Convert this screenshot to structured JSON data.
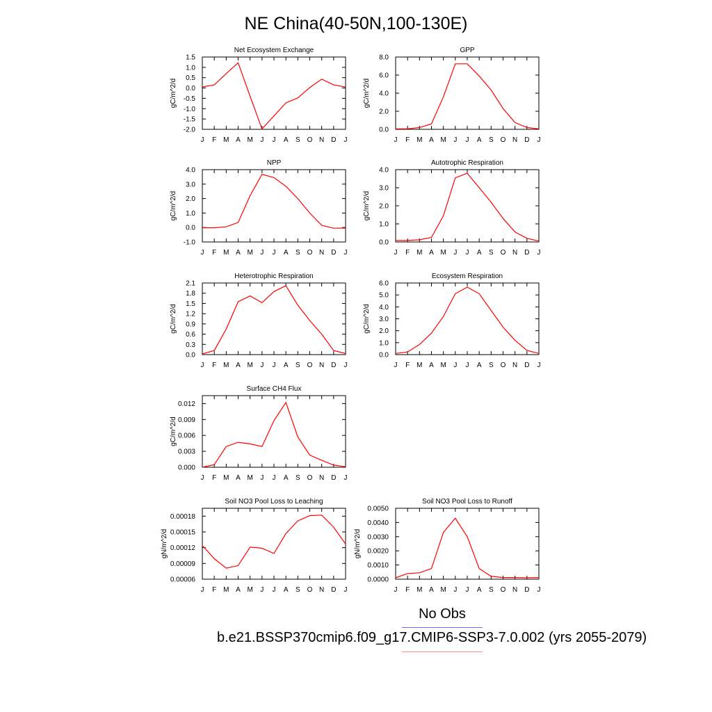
{
  "page": {
    "title": "NE China(40-50N,100-130E)",
    "legend_label": "No Obs",
    "caption": "b.e21.BSSP370cmip6.f09_g17.CMIP6-SSP3-7.0.002 (yrs 2055-2079)",
    "colors": {
      "line": "#ff0000",
      "legend_blue": "#6b6bff",
      "legend_red": "#ff8a8a",
      "axis": "#000000"
    }
  },
  "chart_data": [
    {
      "type": "line",
      "title": "Net Ecosystem Exchange",
      "ylabel": "gC/m^2/d",
      "x": [
        "J",
        "F",
        "M",
        "A",
        "M",
        "J",
        "J",
        "A",
        "S",
        "O",
        "N",
        "D",
        "J"
      ],
      "values": [
        0.05,
        0.15,
        0.7,
        1.22,
        -0.4,
        -1.98,
        -1.35,
        -0.72,
        -0.48,
        0.02,
        0.43,
        0.15,
        0.05
      ],
      "ylim": [
        -2.0,
        1.5
      ],
      "yticks": [
        "-2.0",
        "-1.5",
        "-1.0",
        "-0.5",
        "0.0",
        "0.5",
        "1.0",
        "1.5"
      ],
      "grid": false
    },
    {
      "type": "line",
      "title": "GPP",
      "ylabel": "gC/m^2/d",
      "x": [
        "J",
        "F",
        "M",
        "A",
        "M",
        "J",
        "J",
        "A",
        "S",
        "O",
        "N",
        "D",
        "J"
      ],
      "values": [
        0.05,
        0.05,
        0.2,
        0.6,
        3.6,
        7.25,
        7.25,
        5.9,
        4.35,
        2.3,
        0.75,
        0.2,
        0.05
      ],
      "ylim": [
        0.0,
        8.0
      ],
      "yticks": [
        "0.0",
        "2.0",
        "4.0",
        "6.0",
        "8.0"
      ],
      "grid": false
    },
    {
      "type": "line",
      "title": "NPP",
      "ylabel": "gC/m^2/d",
      "x": [
        "J",
        "F",
        "M",
        "A",
        "M",
        "J",
        "J",
        "A",
        "S",
        "O",
        "N",
        "D",
        "J"
      ],
      "values": [
        -0.02,
        -0.02,
        0.05,
        0.35,
        2.2,
        3.68,
        3.45,
        2.85,
        2.0,
        1.0,
        0.15,
        -0.05,
        -0.04
      ],
      "ylim": [
        -1.0,
        4.0
      ],
      "yticks": [
        "-1.0",
        "0.0",
        "1.0",
        "2.0",
        "3.0",
        "4.0"
      ],
      "grid": false
    },
    {
      "type": "line",
      "title": "Autotrophic Respiration",
      "ylabel": "gC/m^2/d",
      "x": [
        "J",
        "F",
        "M",
        "A",
        "M",
        "J",
        "J",
        "A",
        "S",
        "O",
        "N",
        "D",
        "J"
      ],
      "values": [
        0.08,
        0.08,
        0.12,
        0.25,
        1.45,
        3.55,
        3.8,
        3.0,
        2.2,
        1.3,
        0.55,
        0.2,
        0.05
      ],
      "ylim": [
        0.0,
        4.0
      ],
      "yticks": [
        "0.0",
        "1.0",
        "2.0",
        "3.0",
        "4.0"
      ],
      "grid": false
    },
    {
      "type": "line",
      "title": "Heterotrophic Respiration",
      "ylabel": "gC/m^2/d",
      "x": [
        "J",
        "F",
        "M",
        "A",
        "M",
        "J",
        "J",
        "A",
        "S",
        "O",
        "N",
        "D",
        "J"
      ],
      "values": [
        0.02,
        0.12,
        0.75,
        1.55,
        1.72,
        1.52,
        1.85,
        2.02,
        1.45,
        1.0,
        0.6,
        0.12,
        0.03
      ],
      "ylim": [
        0.0,
        2.1
      ],
      "yticks": [
        "0.0",
        "0.3",
        "0.6",
        "0.9",
        "1.2",
        "1.5",
        "1.8",
        "2.1"
      ],
      "grid": false
    },
    {
      "type": "line",
      "title": "Ecosystem Respiration",
      "ylabel": "gC/m^2/d",
      "x": [
        "J",
        "F",
        "M",
        "A",
        "M",
        "J",
        "J",
        "A",
        "S",
        "O",
        "N",
        "D",
        "J"
      ],
      "values": [
        0.1,
        0.22,
        0.85,
        1.8,
        3.2,
        5.1,
        5.65,
        5.1,
        3.7,
        2.3,
        1.2,
        0.35,
        0.1
      ],
      "ylim": [
        0.0,
        6.0
      ],
      "yticks": [
        "0.0",
        "1.0",
        "2.0",
        "3.0",
        "4.0",
        "5.0",
        "6.0"
      ],
      "grid": false
    },
    {
      "type": "line",
      "title": "Surface CH4 Flux",
      "ylabel": "gC/m^2/d",
      "x": [
        "J",
        "F",
        "M",
        "A",
        "M",
        "J",
        "J",
        "A",
        "S",
        "O",
        "N",
        "D",
        "J"
      ],
      "values": [
        0.0,
        0.0005,
        0.0039,
        0.0047,
        0.0044,
        0.0039,
        0.0088,
        0.0122,
        0.0057,
        0.0023,
        0.0013,
        0.0004,
        0.0001
      ],
      "ylim": [
        0.0,
        0.0135
      ],
      "yticks": [
        "0.000",
        "0.003",
        "0.006",
        "0.009",
        "0.012"
      ],
      "ytickvals": [
        0.0,
        0.003,
        0.006,
        0.009,
        0.012
      ],
      "grid": false
    },
    {
      "type": "line",
      "title": "Soil NO3 Pool Loss to Leaching",
      "ylabel": "gN/m^2/d",
      "x": [
        "J",
        "F",
        "M",
        "A",
        "M",
        "J",
        "J",
        "A",
        "S",
        "O",
        "N",
        "D",
        "J"
      ],
      "values": [
        0.000124,
        9.9e-05,
        8.1e-05,
        8.6e-05,
        0.000121,
        0.000119,
        0.000109,
        0.000147,
        0.000171,
        0.000181,
        0.000182,
        0.000159,
        0.000127
      ],
      "ylim": [
        6e-05,
        0.000195
      ],
      "yticks": [
        "0.00006",
        "0.00009",
        "0.00012",
        "0.00015",
        "0.00018"
      ],
      "ytickvals": [
        6e-05,
        9e-05,
        0.00012,
        0.00015,
        0.00018
      ],
      "grid": false
    },
    {
      "type": "line",
      "title": "Soil NO3 Pool Loss to Runoff",
      "ylabel": "gN/m^2/d",
      "x": [
        "J",
        "F",
        "M",
        "A",
        "M",
        "J",
        "J",
        "A",
        "S",
        "O",
        "N",
        "D",
        "J"
      ],
      "values": [
        0.0001,
        0.0004,
        0.00045,
        0.00075,
        0.0033,
        0.0043,
        0.003,
        0.00075,
        0.0002,
        0.00012,
        0.00012,
        0.0001,
        0.00012
      ],
      "ylim": [
        0.0,
        0.005
      ],
      "yticks": [
        "0.0000",
        "0.0010",
        "0.0020",
        "0.0030",
        "0.0040",
        "0.0050"
      ],
      "grid": false
    }
  ]
}
